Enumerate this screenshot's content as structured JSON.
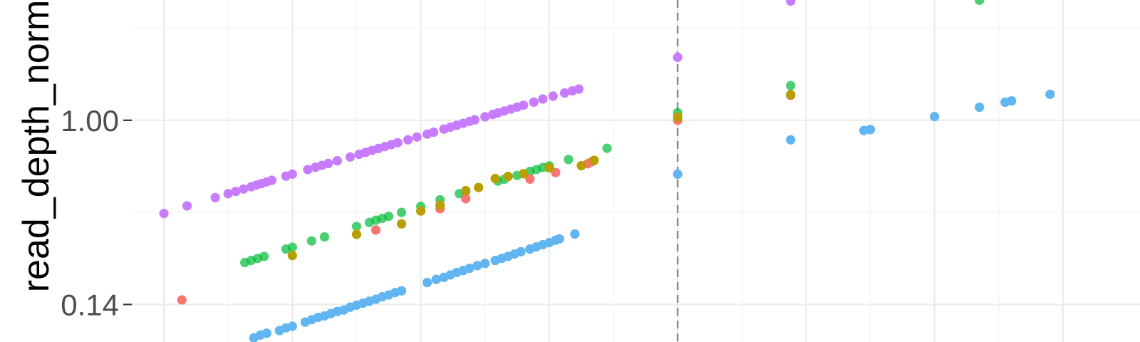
{
  "chart_data": {
    "type": "scatter",
    "title": "",
    "xlabel": "",
    "ylabel": "read_depth_norm",
    "y_scale": "log",
    "y_ticks": [
      {
        "label": "1.00",
        "value": 1.0
      },
      {
        "label": "0.14",
        "value": 0.14
      }
    ],
    "xlim": [
      -0.25,
      7.6
    ],
    "ylim": [
      0.0938,
      3.61
    ],
    "x_gridlines": [
      0,
      1,
      2,
      3,
      4,
      5,
      6,
      7
    ],
    "vline": {
      "x": 4,
      "style": "dashed"
    },
    "grid": true,
    "legend": "none",
    "series": [
      {
        "color": "#C77CFF",
        "points": [
          [
            0,
            0.37
          ],
          [
            0.18,
            0.401
          ],
          [
            0.4,
            0.438
          ],
          [
            0.5,
            0.457
          ],
          [
            0.56,
            0.468
          ],
          [
            0.62,
            0.48
          ],
          [
            0.68,
            0.492
          ],
          [
            0.72,
            0.501
          ],
          [
            0.76,
            0.509
          ],
          [
            0.8,
            0.518
          ],
          [
            0.84,
            0.527
          ],
          [
            0.95,
            0.551
          ],
          [
            1.0,
            0.563
          ],
          [
            1.12,
            0.591
          ],
          [
            1.18,
            0.606
          ],
          [
            1.23,
            0.618
          ],
          [
            1.28,
            0.631
          ],
          [
            1.35,
            0.649
          ],
          [
            1.45,
            0.676
          ],
          [
            1.52,
            0.696
          ],
          [
            1.57,
            0.71
          ],
          [
            1.62,
            0.725
          ],
          [
            1.67,
            0.74
          ],
          [
            1.72,
            0.755
          ],
          [
            1.77,
            0.771
          ],
          [
            1.82,
            0.787
          ],
          [
            1.9,
            0.812
          ],
          [
            1.97,
            0.836
          ],
          [
            2.05,
            0.863
          ],
          [
            2.1,
            0.881
          ],
          [
            2.18,
            0.91
          ],
          [
            2.23,
            0.929
          ],
          [
            2.28,
            0.948
          ],
          [
            2.33,
            0.968
          ],
          [
            2.38,
            0.988
          ],
          [
            2.42,
            1.005
          ],
          [
            2.5,
            1.038
          ],
          [
            2.56,
            1.064
          ],
          [
            2.6,
            1.082
          ],
          [
            2.65,
            1.104
          ],
          [
            2.7,
            1.127
          ],
          [
            2.75,
            1.151
          ],
          [
            2.8,
            1.175
          ],
          [
            2.88,
            1.214
          ],
          [
            2.95,
            1.255
          ],
          [
            3.03,
            1.294
          ],
          [
            3.12,
            1.338
          ],
          [
            3.18,
            1.368
          ],
          [
            3.23,
            1.395
          ],
          [
            4,
            1.96
          ],
          [
            4.88,
            3.57
          ]
        ]
      },
      {
        "color": "#00BA38",
        "opacity": 0.7,
        "points": [
          [
            0.63,
            0.219
          ],
          [
            0.68,
            0.224
          ],
          [
            0.73,
            0.229
          ],
          [
            0.78,
            0.234
          ],
          [
            0.95,
            0.253
          ],
          [
            1.0,
            0.258
          ],
          [
            1.15,
            0.276
          ],
          [
            1.25,
            0.288
          ],
          [
            1.5,
            0.322
          ],
          [
            1.6,
            0.336
          ],
          [
            1.65,
            0.344
          ],
          [
            1.7,
            0.351
          ],
          [
            1.75,
            0.359
          ],
          [
            1.85,
            0.374
          ],
          [
            2.0,
            0.399
          ],
          [
            2.15,
            0.428
          ],
          [
            2.3,
            0.457
          ],
          [
            2.35,
            0.467
          ],
          [
            2.6,
            0.523
          ],
          [
            2.65,
            0.533
          ],
          [
            2.75,
            0.555
          ],
          [
            2.85,
            0.58
          ],
          [
            2.9,
            0.591
          ],
          [
            2.95,
            0.604
          ],
          [
            3.0,
            0.615
          ],
          [
            3.15,
            0.658
          ],
          [
            3.45,
            0.742
          ],
          [
            4,
            1.085
          ],
          [
            4.88,
            1.448
          ],
          [
            6.35,
            3.6
          ]
        ]
      },
      {
        "color": "#F8766D",
        "points": [
          [
            0.14,
            0.147
          ],
          [
            1.65,
            0.31
          ],
          [
            2.15,
            0.389
          ],
          [
            2.35,
            0.433
          ],
          [
            2.85,
            0.534
          ],
          [
            3.05,
            0.572
          ],
          [
            3.3,
            0.629
          ],
          [
            3.33,
            0.642
          ],
          [
            4,
            1.0
          ],
          [
            4.88,
            1.306
          ]
        ]
      },
      {
        "color": "#B79F00",
        "points": [
          [
            1.0,
            0.236
          ],
          [
            1.5,
            0.296
          ],
          [
            1.85,
            0.331
          ],
          [
            2.0,
            0.38
          ],
          [
            2.15,
            0.404
          ],
          [
            2.35,
            0.472
          ],
          [
            2.45,
            0.488
          ],
          [
            2.58,
            0.537
          ],
          [
            2.68,
            0.549
          ],
          [
            2.8,
            0.565
          ],
          [
            3.0,
            0.602
          ],
          [
            3.25,
            0.616
          ],
          [
            3.35,
            0.652
          ],
          [
            4,
            1.035
          ],
          [
            4.88,
            1.314
          ]
        ]
      },
      {
        "color": "#61B5F0",
        "points": [
          [
            0.7,
            0.098
          ],
          [
            0.75,
            0.101
          ],
          [
            0.8,
            0.103
          ],
          [
            0.9,
            0.106
          ],
          [
            0.95,
            0.109
          ],
          [
            1.0,
            0.111
          ],
          [
            1.1,
            0.116
          ],
          [
            1.15,
            0.119
          ],
          [
            1.2,
            0.122
          ],
          [
            1.25,
            0.124
          ],
          [
            1.3,
            0.127
          ],
          [
            1.35,
            0.13
          ],
          [
            1.4,
            0.132
          ],
          [
            1.45,
            0.136
          ],
          [
            1.5,
            0.139
          ],
          [
            1.55,
            0.142
          ],
          [
            1.6,
            0.145
          ],
          [
            1.65,
            0.148
          ],
          [
            1.7,
            0.152
          ],
          [
            1.75,
            0.155
          ],
          [
            1.8,
            0.159
          ],
          [
            1.85,
            0.162
          ],
          [
            2.05,
            0.177
          ],
          [
            2.12,
            0.183
          ],
          [
            2.18,
            0.187
          ],
          [
            2.23,
            0.192
          ],
          [
            2.28,
            0.197
          ],
          [
            2.33,
            0.201
          ],
          [
            2.38,
            0.206
          ],
          [
            2.44,
            0.212
          ],
          [
            2.5,
            0.217
          ],
          [
            2.58,
            0.224
          ],
          [
            2.63,
            0.229
          ],
          [
            2.68,
            0.234
          ],
          [
            2.73,
            0.24
          ],
          [
            2.78,
            0.246
          ],
          [
            2.85,
            0.253
          ],
          [
            2.9,
            0.259
          ],
          [
            2.95,
            0.265
          ],
          [
            3.0,
            0.271
          ],
          [
            3.05,
            0.278
          ],
          [
            3.08,
            0.282
          ],
          [
            3.2,
            0.297
          ],
          [
            4,
            0.563
          ],
          [
            4.88,
            0.812
          ],
          [
            5.45,
            0.897
          ],
          [
            5.5,
            0.906
          ],
          [
            6.0,
            1.04
          ],
          [
            6.35,
            1.15
          ],
          [
            6.55,
            1.213
          ],
          [
            6.6,
            1.23
          ],
          [
            6.9,
            1.32
          ]
        ]
      }
    ]
  }
}
